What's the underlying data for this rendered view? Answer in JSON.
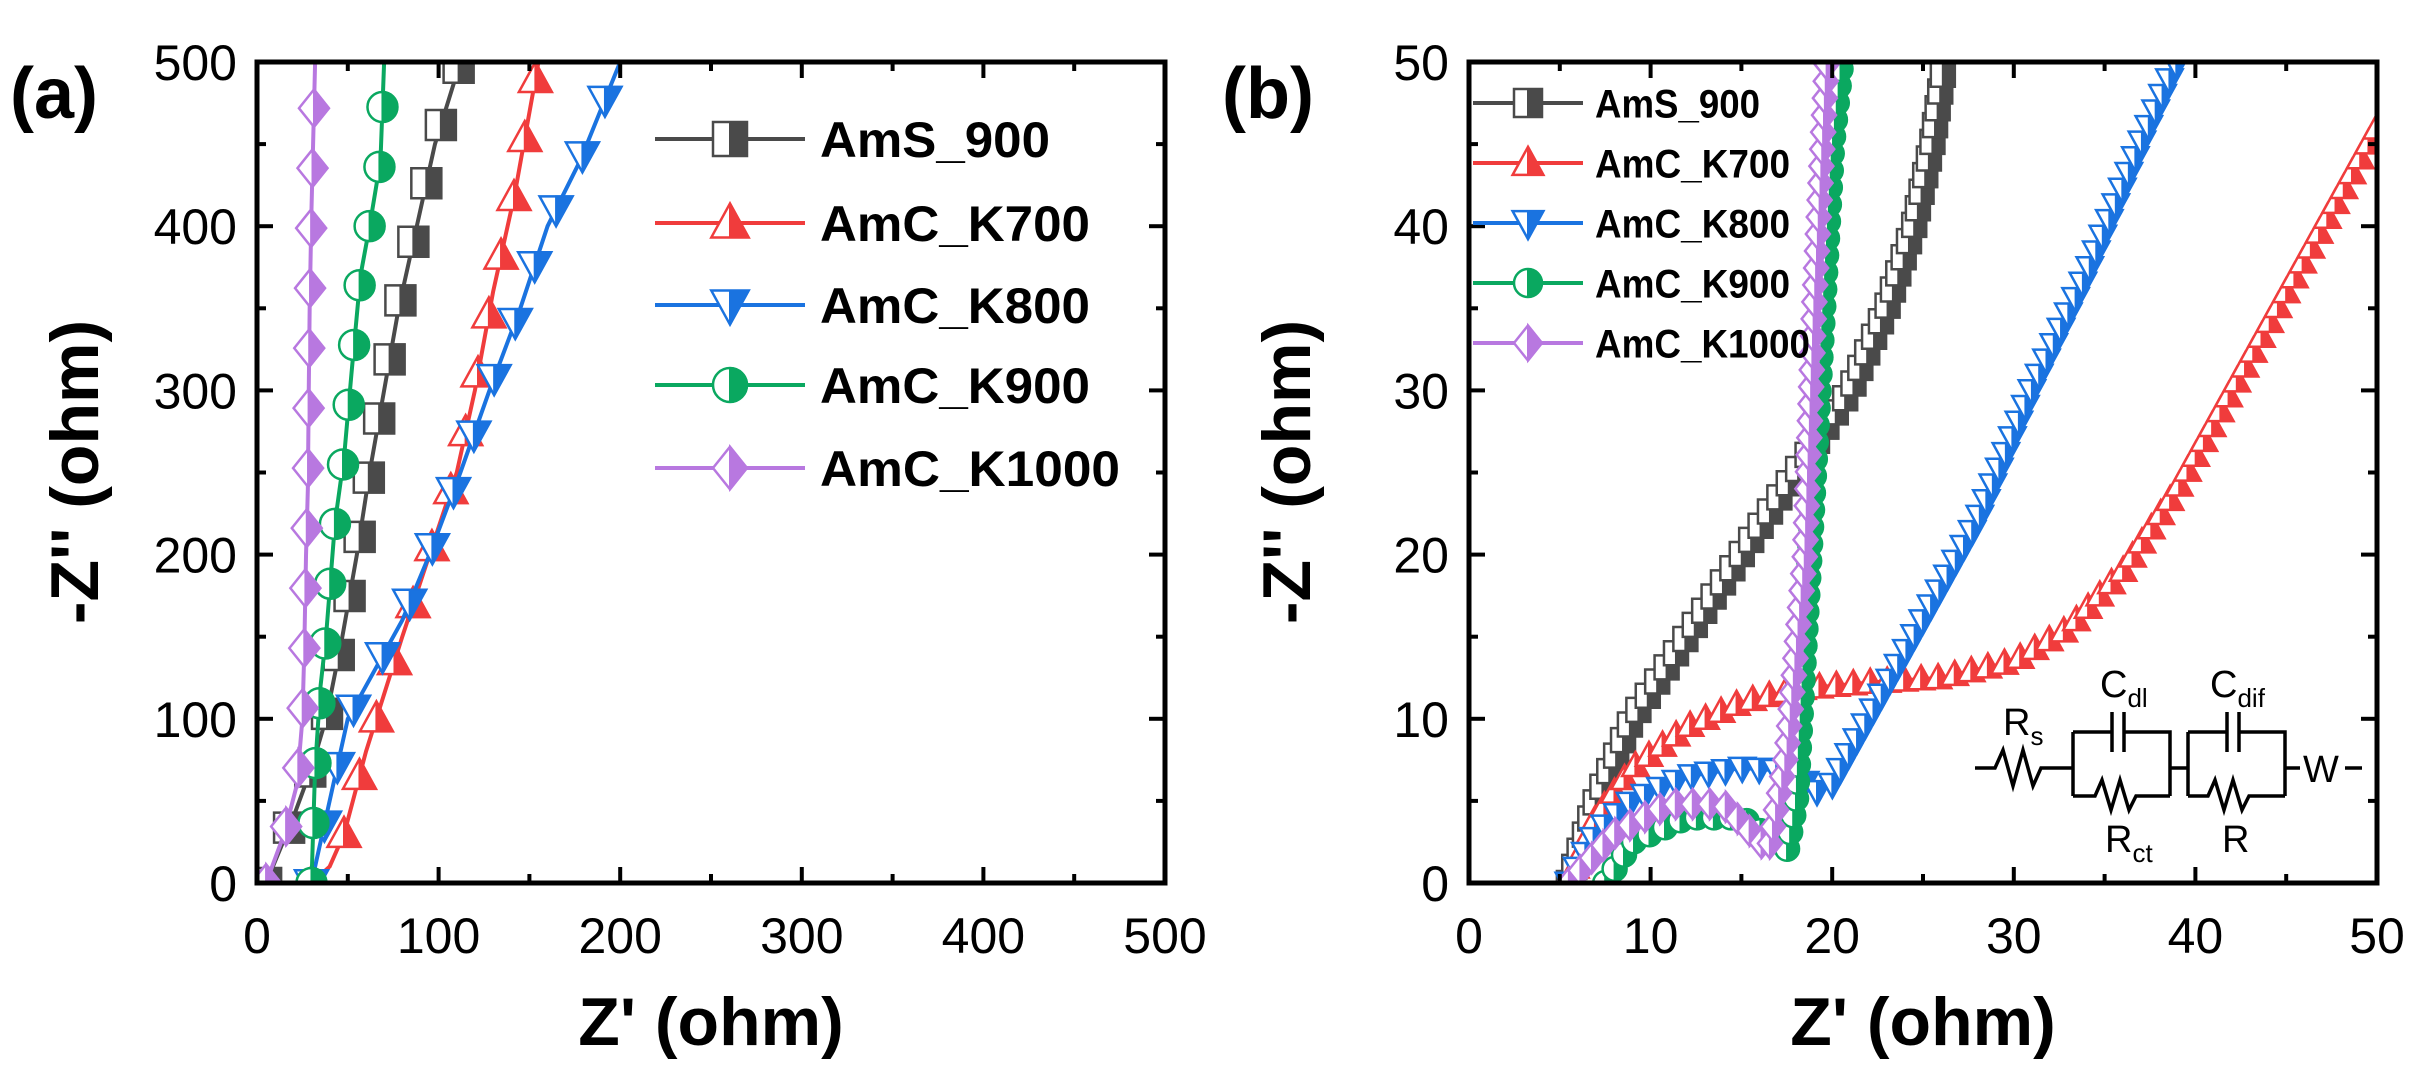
{
  "chart_data": [
    {
      "type": "scatter",
      "panel_label": "(a)",
      "xlabel": "Z' (ohm)",
      "ylabel": "-Z'' (ohm)",
      "xlim": [
        0,
        500
      ],
      "ylim": [
        0,
        500
      ],
      "xticks": [
        "0",
        "100",
        "200",
        "300",
        "400",
        "500"
      ],
      "yticks": [
        "0",
        "100",
        "200",
        "300",
        "400",
        "500"
      ],
      "legend_position": "top-right",
      "series": [
        {
          "name": "AmS_900",
          "color": "#4a4a4a",
          "marker": "square",
          "x": [
            5,
            20,
            30,
            38,
            47,
            55,
            62,
            70,
            78,
            88,
            98,
            112
          ],
          "y": [
            0,
            40,
            70,
            100,
            150,
            200,
            250,
            300,
            350,
            400,
            450,
            500
          ]
        },
        {
          "name": "AmC_K700",
          "color": "#f03c3c",
          "marker": "triangle-up",
          "x": [
            30,
            40,
            48,
            60,
            80,
            95,
            110,
            120,
            130,
            142,
            155
          ],
          "y": [
            0,
            10,
            30,
            80,
            150,
            200,
            250,
            300,
            360,
            420,
            500
          ]
        },
        {
          "name": "AmC_K800",
          "color": "#1a73e0",
          "marker": "triangle-down",
          "x": [
            30,
            38,
            50,
            65,
            80,
            95,
            112,
            128,
            145,
            160,
            178,
            200
          ],
          "y": [
            0,
            40,
            100,
            130,
            160,
            200,
            250,
            300,
            350,
            400,
            440,
            500
          ]
        },
        {
          "name": "AmC_K900",
          "color": "#0aa860",
          "marker": "circle",
          "x": [
            30,
            32,
            35,
            38,
            43,
            48,
            52,
            57,
            62,
            68,
            70
          ],
          "y": [
            0,
            70,
            120,
            150,
            220,
            260,
            310,
            370,
            400,
            440,
            500
          ]
        },
        {
          "name": "AmC_K1000",
          "color": "#b878e0",
          "marker": "diamond",
          "x": [
            5,
            15,
            22,
            25,
            26,
            27,
            28,
            28.5,
            29,
            30,
            32
          ],
          "y": [
            0,
            30,
            60,
            100,
            140,
            200,
            240,
            300,
            350,
            410,
            500
          ]
        }
      ]
    },
    {
      "type": "scatter",
      "panel_label": "(b)",
      "xlabel": "Z' (ohm)",
      "ylabel": "-Z'' (ohm)",
      "xlim": [
        0,
        50
      ],
      "ylim": [
        0,
        50
      ],
      "xticks": [
        "0",
        "10",
        "20",
        "30",
        "40",
        "50"
      ],
      "yticks": [
        "0",
        "10",
        "20",
        "30",
        "40",
        "50"
      ],
      "legend_position": "top-left",
      "annotations": {
        "circuit_labels": {
          "rs": "R",
          "rs_sub": "s",
          "cdl": "C",
          "cdl_sub": "dl",
          "rct": "R",
          "rct_sub": "ct",
          "cdif": "C",
          "cdif_sub": "dif",
          "r": "R",
          "w": "W"
        }
      },
      "series": [
        {
          "name": "AmS_900",
          "color": "#4a4a4a",
          "marker": "square",
          "x": [
            5.5,
            7,
            9,
            12,
            15,
            18,
            21,
            23,
            24.5,
            25.5,
            26.2
          ],
          "y": [
            0,
            5,
            10,
            15,
            20,
            25,
            30,
            35,
            40,
            45,
            50
          ]
        },
        {
          "name": "AmC_K700",
          "color": "#f03c3c",
          "marker": "triangle-up",
          "x": [
            5.5,
            7,
            9,
            12,
            15,
            18,
            22,
            26,
            30,
            33,
            36,
            39,
            42,
            45,
            48,
            50
          ],
          "y": [
            0,
            4,
            7,
            9.5,
            11,
            11.8,
            12.2,
            12.5,
            13.5,
            15.5,
            19,
            24,
            30,
            36,
            42,
            46
          ]
        },
        {
          "name": "AmC_K800",
          "color": "#1a73e0",
          "marker": "triangle-down",
          "x": [
            5.5,
            7,
            9,
            12,
            15,
            18,
            19,
            20,
            22,
            25,
            28,
            31,
            34,
            37,
            39
          ],
          "y": [
            0,
            3,
            5,
            6.5,
            7,
            6.8,
            5.5,
            6,
            10,
            16,
            22,
            30,
            37,
            45,
            50
          ]
        },
        {
          "name": "AmC_K900",
          "color": "#0aa860",
          "marker": "circle",
          "x": [
            7.5,
            9,
            12,
            15,
            17.5,
            18,
            18.5,
            19,
            19.5,
            20,
            20.5
          ],
          "y": [
            0,
            2.5,
            4,
            4,
            2,
            5,
            15,
            25,
            35,
            45,
            50
          ]
        },
        {
          "name": "AmC_K1000",
          "color": "#b878e0",
          "marker": "diamond",
          "x": [
            5.5,
            8,
            11,
            14,
            16.5,
            17.5,
            18.5,
            19,
            19.7
          ],
          "y": [
            0,
            3,
            4.8,
            4.8,
            2,
            8,
            20,
            35,
            50
          ]
        }
      ]
    }
  ]
}
